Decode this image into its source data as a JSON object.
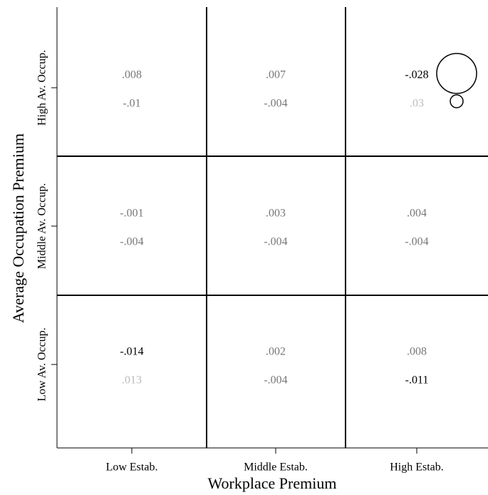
{
  "chart_data": {
    "type": "grid",
    "x_label": "Workplace Premium",
    "y_label": "Average Occupation Premium",
    "x_categories": [
      "Low Estab.",
      "Middle Estab.",
      "High Estab."
    ],
    "y_categories": [
      "Low Av. Occup.",
      "Middle Av. Occup.",
      "High Av. Occup."
    ],
    "series": [
      {
        "values": [
          [
            -0.014,
            0.002,
            0.008
          ],
          [
            -0.001,
            0.003,
            0.004
          ],
          [
            0.008,
            0.007,
            -0.028
          ]
        ],
        "value_labels": [
          [
            "-.014",
            ".002",
            ".008"
          ],
          [
            "-.001",
            ".003",
            ".004"
          ],
          [
            ".008",
            ".007",
            "-.028"
          ]
        ],
        "colors": [
          [
            "#000000",
            "#777777",
            "#777777"
          ],
          [
            "#777777",
            "#777777",
            "#777777"
          ],
          [
            "#777777",
            "#777777",
            "#000000"
          ]
        ]
      },
      {
        "values": [
          [
            0.013,
            -0.004,
            -0.011
          ],
          [
            -0.004,
            -0.004,
            -0.004
          ],
          [
            -0.01,
            -0.004,
            0.03
          ]
        ],
        "value_labels": [
          [
            ".013",
            "-.004",
            "-.011"
          ],
          [
            "-.004",
            "-.004",
            "-.004"
          ],
          [
            "-.01",
            "-.004",
            ".03"
          ]
        ],
        "colors": [
          [
            "#bbbbbb",
            "#777777",
            "#000000"
          ],
          [
            "#777777",
            "#777777",
            "#777777"
          ],
          [
            "#777777",
            "#777777",
            "#bbbbbb"
          ]
        ]
      }
    ]
  }
}
